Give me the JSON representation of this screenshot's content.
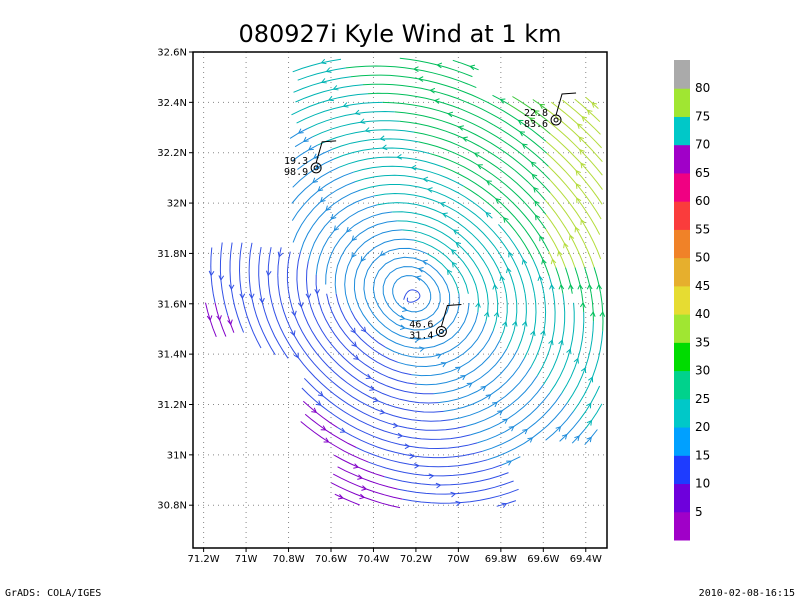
{
  "chart_data": {
    "type": "streamline",
    "title": "080927i Kyle Wind at 1 km",
    "x_ticks": [
      "71.2W",
      "71W",
      "70.8W",
      "70.6W",
      "70.4W",
      "70.2W",
      "70W",
      "69.8W",
      "69.6W",
      "69.4W"
    ],
    "x_values": [
      -71.2,
      -71.0,
      -70.8,
      -70.6,
      -70.4,
      -70.2,
      -70.0,
      -69.8,
      -69.6,
      -69.4
    ],
    "y_ticks": [
      "30.8N",
      "31N",
      "31.2N",
      "31.4N",
      "31.6N",
      "31.8N",
      "32N",
      "32.2N",
      "32.4N",
      "32.6N"
    ],
    "y_values": [
      30.8,
      31.0,
      31.2,
      31.4,
      31.6,
      31.8,
      32.0,
      32.2,
      32.4,
      32.6
    ],
    "xlim": [
      -71.25,
      -69.3
    ],
    "ylim": [
      30.63,
      32.6
    ],
    "grid": true,
    "storm_center": {
      "lon": -70.22,
      "lat": 31.64
    },
    "stations": [
      {
        "lon": -70.67,
        "lat": 32.14,
        "label_top": "19.3",
        "label_bottom": "98.9"
      },
      {
        "lon": -69.54,
        "lat": 32.33,
        "label_top": "22.8",
        "label_bottom": "83.6"
      },
      {
        "lon": -70.08,
        "lat": 31.49,
        "label_top": "46.6",
        "label_bottom": "31.4"
      }
    ],
    "colorbar": {
      "labels": [
        "5",
        "10",
        "15",
        "20",
        "25",
        "30",
        "35",
        "40",
        "45",
        "50",
        "55",
        "60",
        "65",
        "70",
        "75",
        "80"
      ],
      "colors": [
        "#a000c8",
        "#6e00dc",
        "#1e3cff",
        "#00a0ff",
        "#00c8c8",
        "#00d28c",
        "#00dc00",
        "#a0e632",
        "#e6dc32",
        "#e6af2d",
        "#f08228",
        "#fa3c3c",
        "#f00082",
        "#a000c8",
        "#00c8c8",
        "#a0e632",
        "#aaaaaa"
      ]
    }
  },
  "footer": {
    "left": "GrADS: COLA/IGES",
    "right": "2010-02-08-16:15"
  }
}
